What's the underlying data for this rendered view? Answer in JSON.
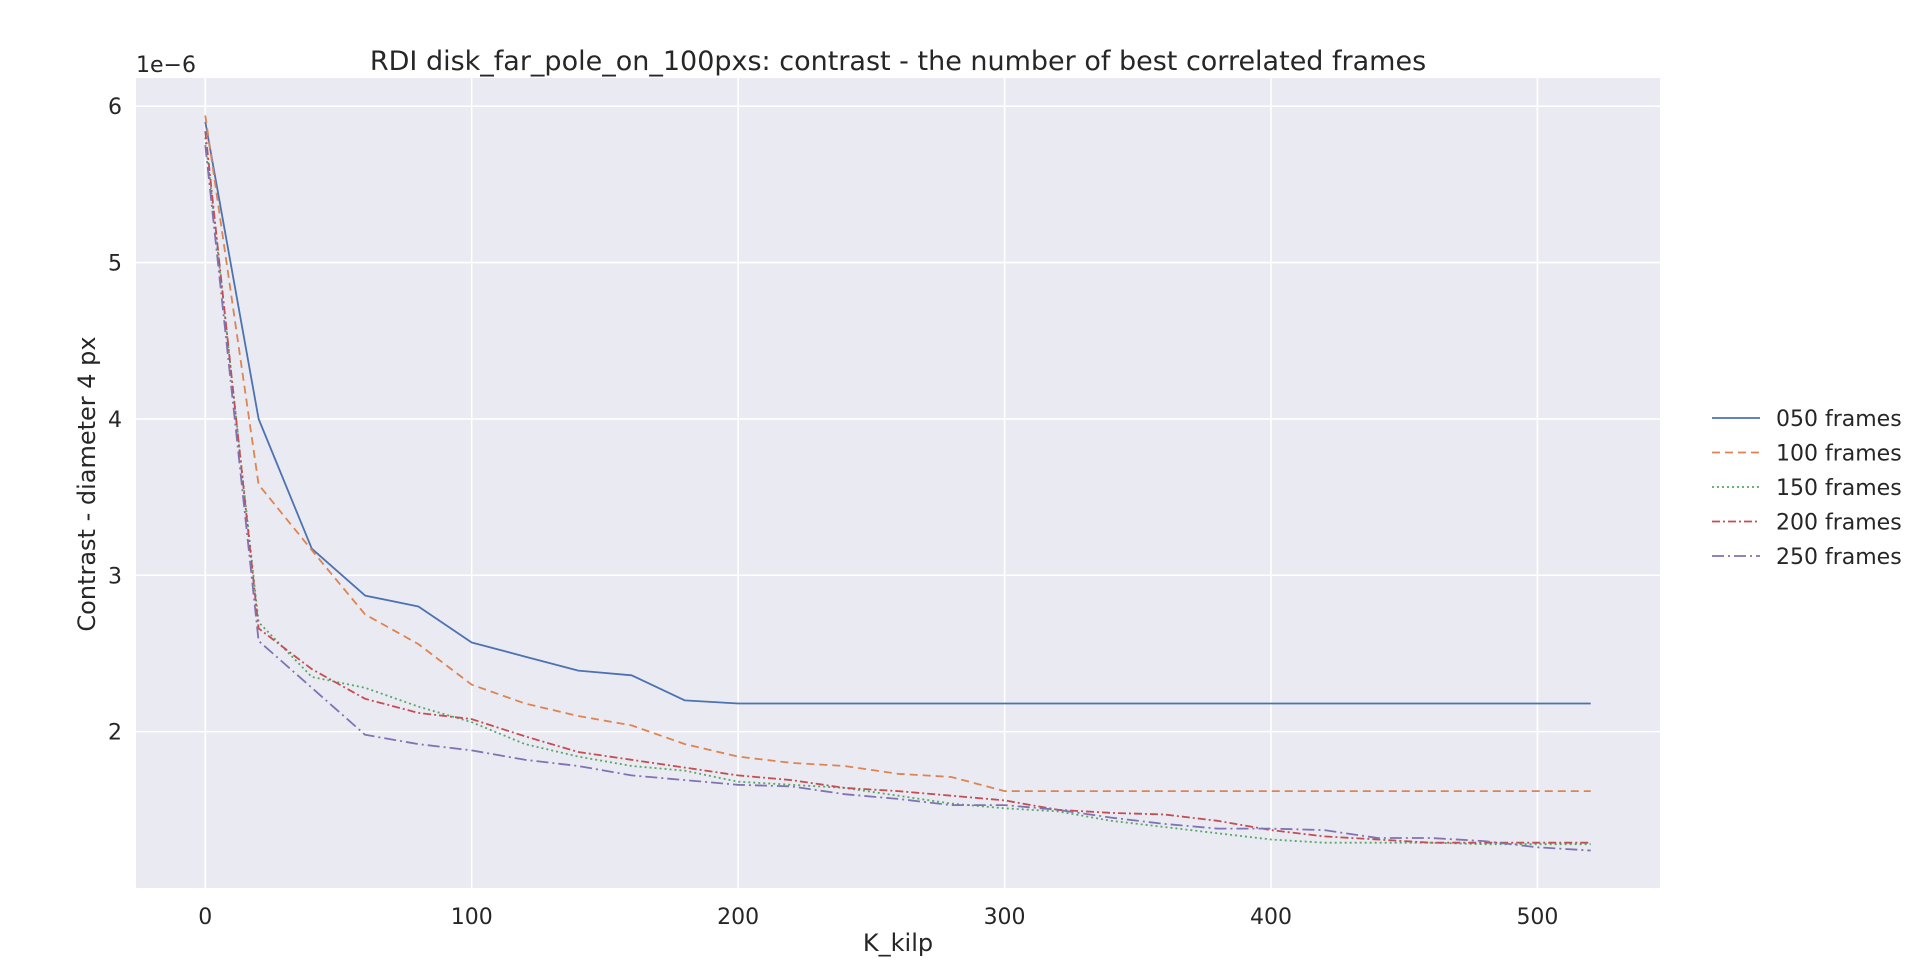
{
  "chart_data": {
    "type": "line",
    "title": "RDI disk_far_pole_on_100pxs: contrast - the number of best correlated frames",
    "xlabel": "K_kilp",
    "ylabel": "Contrast - diameter 4 px",
    "y_offset_label": "1e−6",
    "y_scale_exponent": -6,
    "xlim": [
      -26,
      546
    ],
    "ylim": [
      1.0,
      6.18
    ],
    "x_ticks": [
      0,
      100,
      200,
      300,
      400,
      500
    ],
    "x_tick_labels": [
      "0",
      "100",
      "200",
      "300",
      "400",
      "500"
    ],
    "y_ticks": [
      2,
      3,
      4,
      5,
      6
    ],
    "y_tick_labels": [
      "2",
      "3",
      "4",
      "5",
      "6"
    ],
    "grid": true,
    "legend_position": "right-outside",
    "background": "#eaeaf2",
    "x": [
      0,
      20,
      40,
      60,
      80,
      100,
      120,
      140,
      160,
      180,
      200,
      220,
      240,
      260,
      280,
      300,
      320,
      340,
      360,
      380,
      400,
      420,
      440,
      460,
      480,
      500,
      520
    ],
    "series": [
      {
        "name": "050 frames",
        "color": "#4c72b0",
        "dash": "",
        "values": [
          5.9,
          4.0,
          3.17,
          2.87,
          2.8,
          2.57,
          2.48,
          2.39,
          2.36,
          2.2,
          2.18,
          2.18,
          2.18,
          2.18,
          2.18,
          2.18,
          2.18,
          2.18,
          2.18,
          2.18,
          2.18,
          2.18,
          2.18,
          2.18,
          2.18,
          2.18,
          2.18
        ]
      },
      {
        "name": "100 frames",
        "color": "#dd8452",
        "dash": "8,5",
        "values": [
          5.94,
          3.58,
          3.16,
          2.75,
          2.56,
          2.3,
          2.18,
          2.1,
          2.04,
          1.92,
          1.84,
          1.8,
          1.78,
          1.73,
          1.71,
          1.62,
          1.62,
          1.62,
          1.62,
          1.62,
          1.62,
          1.62,
          1.62,
          1.62,
          1.62,
          1.62,
          1.62
        ]
      },
      {
        "name": "150 frames",
        "color": "#55a868",
        "dash": "2,3",
        "values": [
          5.8,
          2.7,
          2.35,
          2.28,
          2.16,
          2.06,
          1.92,
          1.84,
          1.78,
          1.75,
          1.68,
          1.66,
          1.64,
          1.59,
          1.54,
          1.51,
          1.49,
          1.43,
          1.39,
          1.35,
          1.31,
          1.29,
          1.29,
          1.29,
          1.28,
          1.28,
          1.28
        ]
      },
      {
        "name": "200 frames",
        "color": "#c44e52",
        "dash": "8,3,2,3",
        "values": [
          5.84,
          2.66,
          2.4,
          2.21,
          2.12,
          2.08,
          1.97,
          1.87,
          1.82,
          1.77,
          1.72,
          1.69,
          1.64,
          1.62,
          1.59,
          1.56,
          1.5,
          1.48,
          1.47,
          1.43,
          1.37,
          1.33,
          1.31,
          1.29,
          1.29,
          1.29,
          1.29
        ]
      },
      {
        "name": "250 frames",
        "color": "#8172b3",
        "dash": "12,4,2,4",
        "values": [
          5.75,
          2.58,
          2.28,
          1.98,
          1.92,
          1.88,
          1.82,
          1.78,
          1.72,
          1.69,
          1.66,
          1.65,
          1.6,
          1.57,
          1.53,
          1.53,
          1.5,
          1.45,
          1.41,
          1.38,
          1.38,
          1.37,
          1.32,
          1.32,
          1.3,
          1.26,
          1.24
        ]
      }
    ]
  }
}
